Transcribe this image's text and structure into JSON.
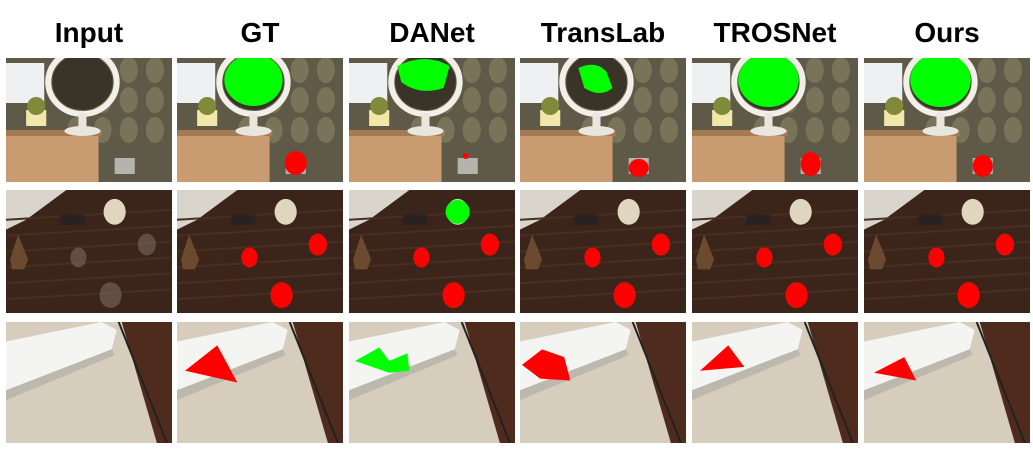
{
  "columns": [
    "Input",
    "GT",
    "DANet",
    "TransLab",
    "TROSNet",
    "Ours"
  ]
}
